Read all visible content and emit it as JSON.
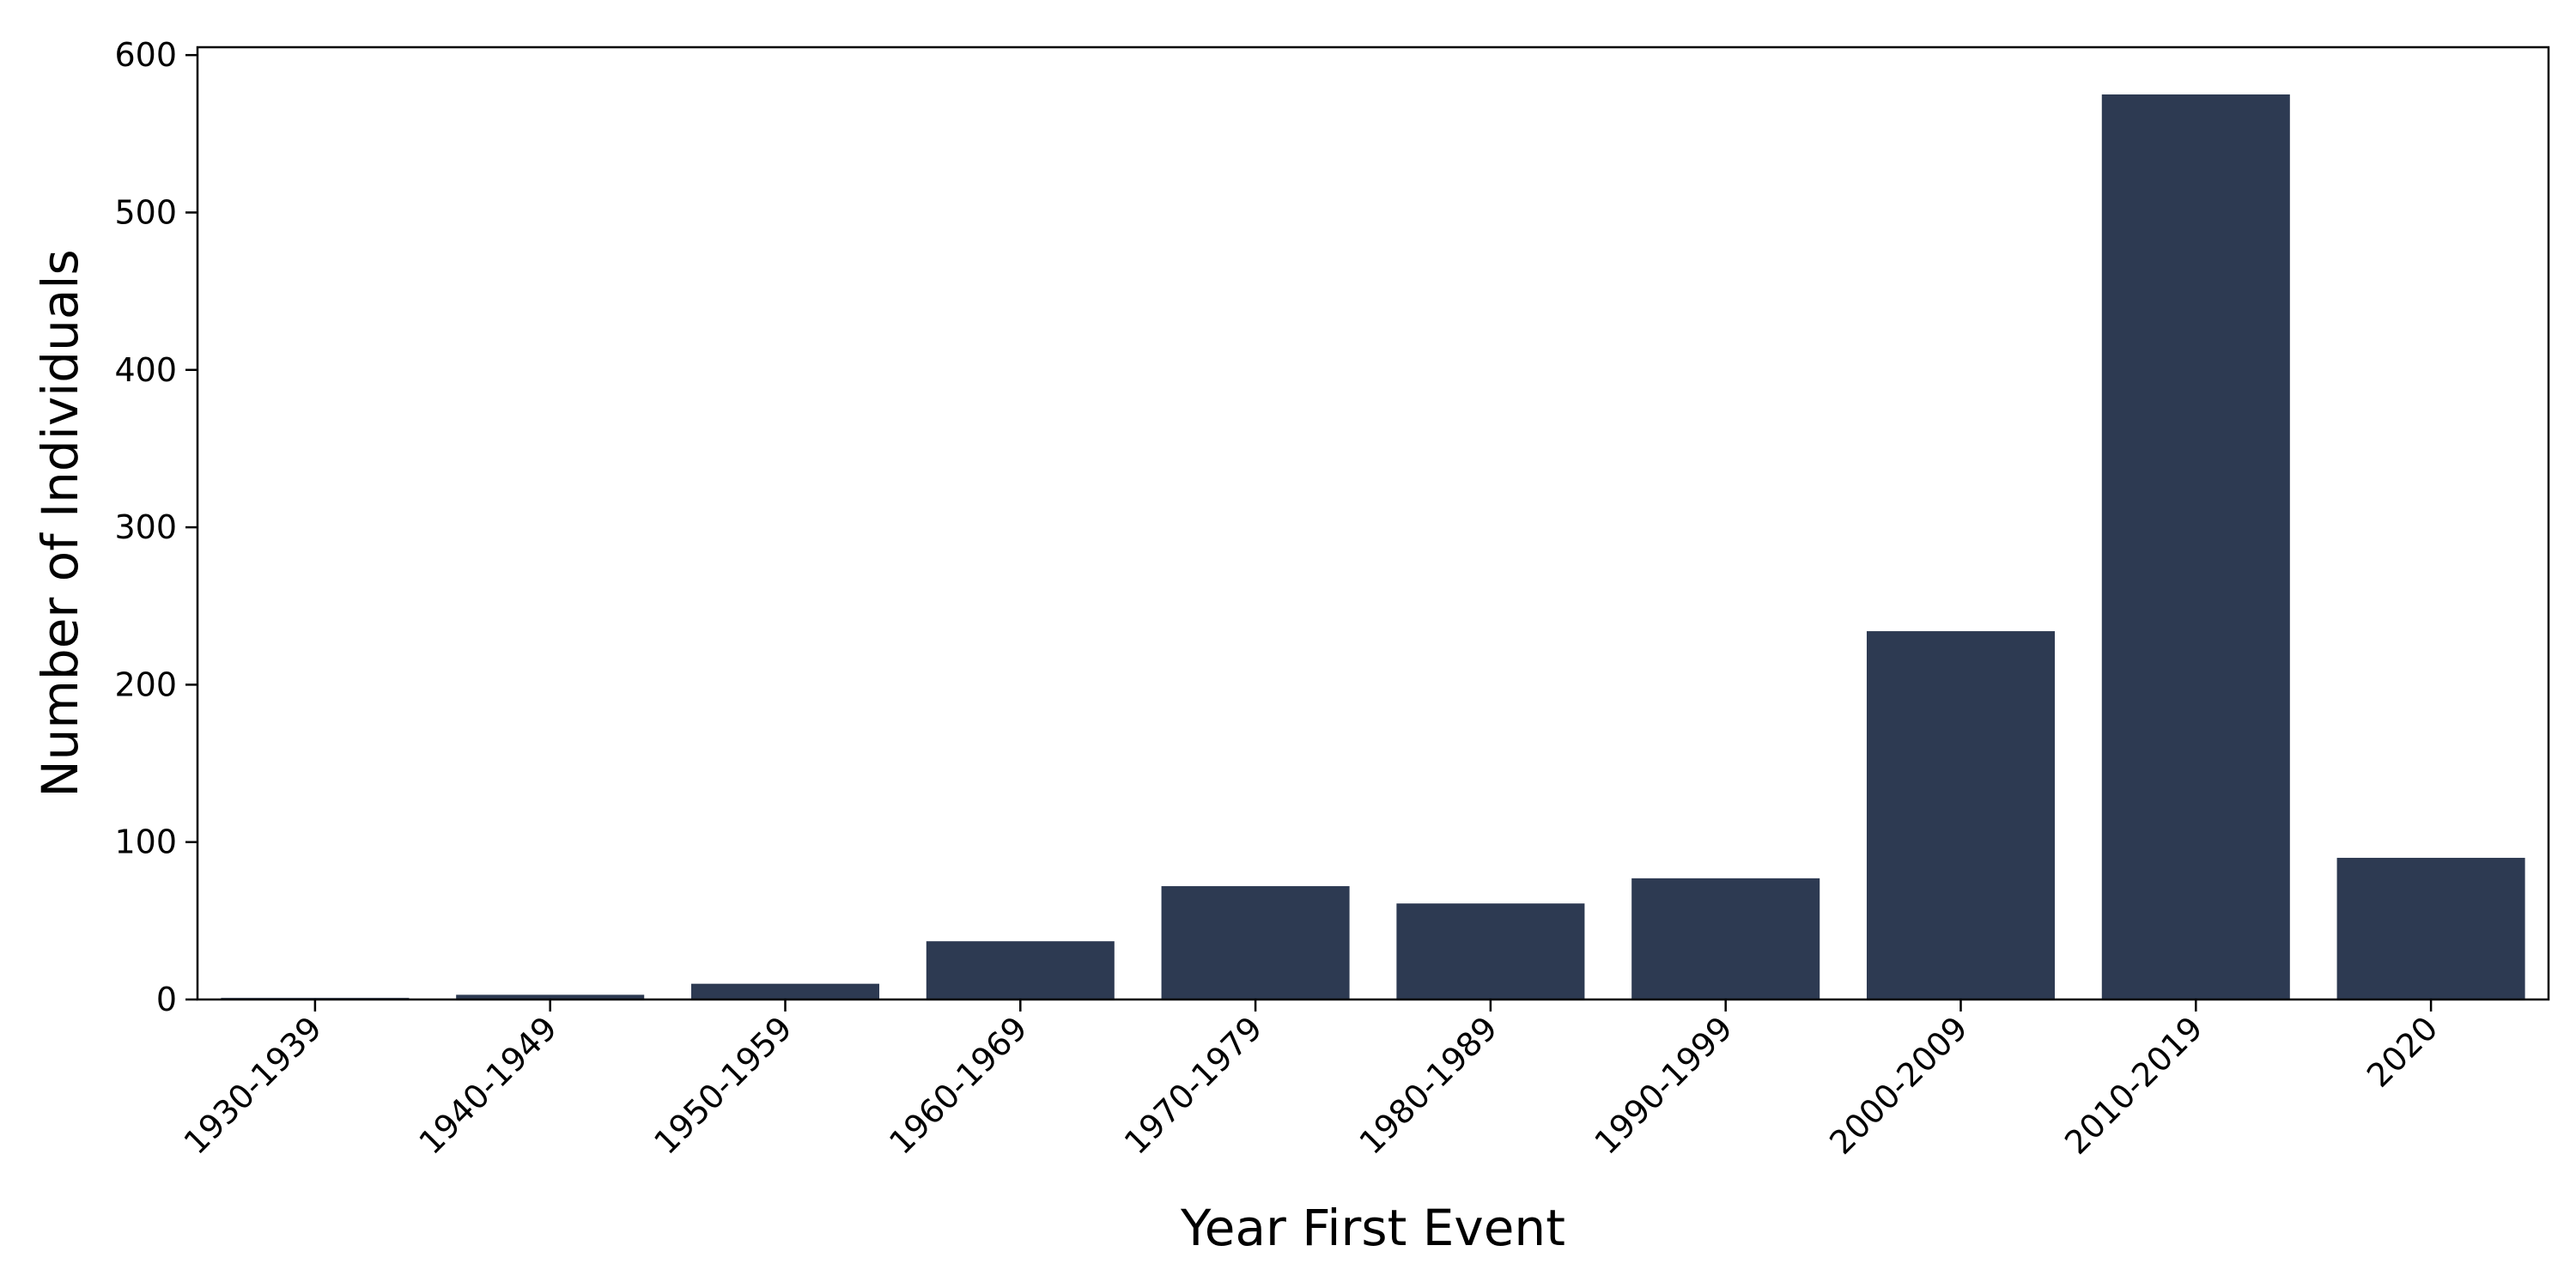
{
  "chart_data": {
    "type": "bar",
    "categories": [
      "1930-1939",
      "1940-1949",
      "1950-1959",
      "1960-1969",
      "1970-1979",
      "1980-1989",
      "1990-1999",
      "2000-2009",
      "2010-2019",
      "2020"
    ],
    "values": [
      1,
      3,
      10,
      37,
      72,
      61,
      77,
      234,
      575,
      90
    ],
    "xlabel": "Year First Event",
    "ylabel": "Number of Individuals",
    "ylim": [
      0,
      605
    ],
    "yticks": [
      0,
      100,
      200,
      300,
      400,
      500,
      600
    ],
    "bar_color": "#2d3a52",
    "grid": false,
    "legend": "none"
  }
}
